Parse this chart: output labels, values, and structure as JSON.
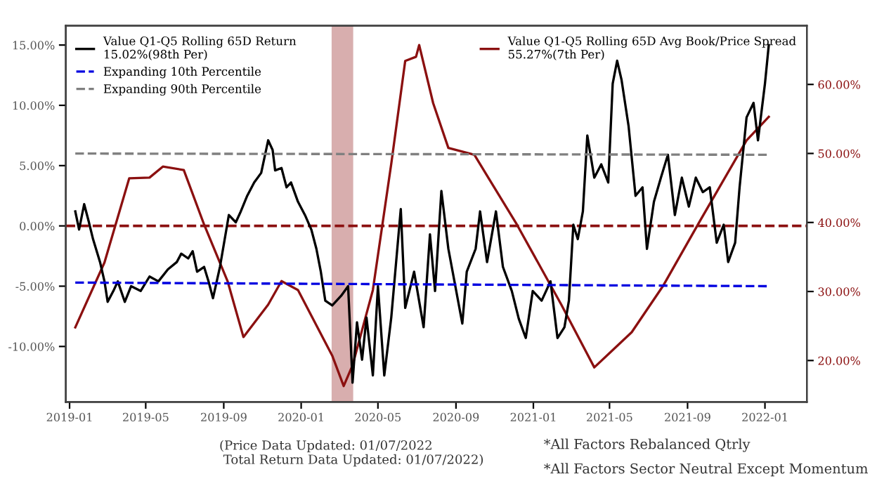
{
  "chart_data": {
    "type": "line",
    "xlim": [
      "2018-12-26",
      "2022-03-08"
    ],
    "xticks": [
      {
        "value": "2019-01-01",
        "label": "2019-01"
      },
      {
        "value": "2019-05-01",
        "label": "2019-05"
      },
      {
        "value": "2019-09-01",
        "label": "2019-09"
      },
      {
        "value": "2020-01-01",
        "label": "2020-01"
      },
      {
        "value": "2020-05-01",
        "label": "2020-05"
      },
      {
        "value": "2020-09-01",
        "label": "2020-09"
      },
      {
        "value": "2021-01-01",
        "label": "2021-01"
      },
      {
        "value": "2021-05-01",
        "label": "2021-05"
      },
      {
        "value": "2021-09-01",
        "label": "2021-09"
      },
      {
        "value": "2022-01-01",
        "label": "2022-01"
      }
    ],
    "ylim": [
      -14.6,
      16.6
    ],
    "yticks": [
      {
        "value": -10,
        "label": "-10.00%"
      },
      {
        "value": -5,
        "label": "-5.00%"
      },
      {
        "value": 0,
        "label": "0.00%"
      },
      {
        "value": 5,
        "label": "5.00%"
      },
      {
        "value": 10,
        "label": "10.00%"
      },
      {
        "value": 15,
        "label": "15.00%"
      }
    ],
    "y2lim": [
      14.0,
      68.5
    ],
    "y2ticks": [
      {
        "value": 20,
        "label": "20.00%"
      },
      {
        "value": 30,
        "label": "30.00%"
      },
      {
        "value": 40,
        "label": "40.00%"
      },
      {
        "value": 50,
        "label": "50.00%"
      },
      {
        "value": 60,
        "label": "60.00%"
      }
    ],
    "legend": "top",
    "grid": false,
    "series": [
      {
        "name": "Value Q1-Q5 Rolling 65D Return\n15.02%(98th Per)",
        "color": "#000000",
        "line_style": "solid",
        "x": [
          "2019-01-10",
          "2019-01-16",
          "2019-01-24",
          "2019-01-31",
          "2019-02-07",
          "2019-02-18",
          "2019-02-25",
          "2019-03-02",
          "2019-03-11",
          "2019-03-18",
          "2019-03-29",
          "2019-04-08",
          "2019-04-23",
          "2019-05-07",
          "2019-05-21",
          "2019-06-05",
          "2019-06-19",
          "2019-06-26",
          "2019-07-07",
          "2019-07-14",
          "2019-07-21",
          "2019-08-01",
          "2019-08-08",
          "2019-08-15",
          "2019-08-26",
          "2019-09-09",
          "2019-09-20",
          "2019-09-27",
          "2019-10-08",
          "2019-10-19",
          "2019-10-30",
          "2019-11-10",
          "2019-11-17",
          "2019-11-21",
          "2019-12-01",
          "2019-12-09",
          "2019-12-16",
          "2019-12-27",
          "2020-01-07",
          "2020-01-17",
          "2020-01-25",
          "2020-02-01",
          "2020-02-08",
          "2020-02-19",
          "2020-03-04",
          "2020-03-15",
          "2020-03-22",
          "2020-03-29",
          "2020-04-06",
          "2020-04-13",
          "2020-04-23",
          "2020-05-01",
          "2020-05-11",
          "2020-05-22",
          "2020-06-06",
          "2020-06-13",
          "2020-06-27",
          "2020-07-12",
          "2020-07-22",
          "2020-07-30",
          "2020-08-09",
          "2020-08-20",
          "2020-09-11",
          "2020-09-18",
          "2020-10-02",
          "2020-10-09",
          "2020-10-20",
          "2020-11-03",
          "2020-11-14",
          "2020-11-28",
          "2020-12-09",
          "2020-12-20",
          "2020-12-31",
          "2021-01-14",
          "2021-01-28",
          "2021-02-08",
          "2021-02-19",
          "2021-02-26",
          "2021-03-05",
          "2021-03-12",
          "2021-03-20",
          "2021-03-27",
          "2021-04-07",
          "2021-04-18",
          "2021-04-29",
          "2021-05-06",
          "2021-05-13",
          "2021-05-20",
          "2021-05-31",
          "2021-06-11",
          "2021-06-22",
          "2021-06-29",
          "2021-07-10",
          "2021-07-21",
          "2021-08-01",
          "2021-08-12",
          "2021-08-23",
          "2021-09-03",
          "2021-09-14",
          "2021-09-25",
          "2021-10-06",
          "2021-10-17",
          "2021-10-28",
          "2021-11-04",
          "2021-11-15",
          "2021-11-22",
          "2021-12-03",
          "2021-12-14",
          "2021-12-21",
          "2022-01-01",
          "2022-01-07"
        ],
        "values": [
          1.2,
          -0.3,
          1.8,
          0.4,
          -1.1,
          -3.0,
          -4.6,
          -6.3,
          -5.4,
          -4.6,
          -6.3,
          -5.0,
          -5.4,
          -4.2,
          -4.6,
          -3.6,
          -3.0,
          -2.3,
          -2.7,
          -2.1,
          -3.8,
          -3.4,
          -4.6,
          -6.0,
          -3.4,
          0.9,
          0.3,
          1.1,
          2.5,
          3.6,
          4.4,
          7.1,
          6.3,
          4.6,
          4.8,
          3.2,
          3.6,
          2.0,
          0.9,
          -0.3,
          -1.9,
          -3.8,
          -6.2,
          -6.6,
          -5.8,
          -5.0,
          -13.0,
          -8.0,
          -11.1,
          -7.6,
          -12.4,
          -5.0,
          -12.4,
          -7.6,
          1.4,
          -6.8,
          -3.8,
          -8.4,
          -0.7,
          -5.4,
          2.9,
          -1.9,
          -8.1,
          -3.8,
          -1.9,
          1.2,
          -3.0,
          1.2,
          -3.4,
          -5.4,
          -7.7,
          -9.3,
          -5.4,
          -6.2,
          -4.6,
          -9.3,
          -8.4,
          -6.2,
          0.1,
          -1.1,
          1.2,
          7.5,
          4.0,
          5.1,
          3.6,
          11.8,
          13.7,
          12.1,
          8.3,
          2.5,
          3.2,
          -1.9,
          2.0,
          4.0,
          5.9,
          0.9,
          4.0,
          1.6,
          4.0,
          2.8,
          3.2,
          -1.4,
          0.1,
          -3.0,
          -1.4,
          3.2,
          9.0,
          10.2,
          7.1,
          11.8,
          15.0
        ]
      },
      {
        "name": "Expanding 10th Percentile",
        "color": "#0000e0",
        "line_style": "dashed",
        "x": [
          "2019-01-10",
          "2022-01-07"
        ],
        "values": [
          -4.7,
          -5.0
        ]
      },
      {
        "name": "Expanding 90th Percentile",
        "color": "#808080",
        "line_style": "dashed",
        "x": [
          "2019-01-10",
          "2022-01-07"
        ],
        "values": [
          6.0,
          5.9
        ]
      },
      {
        "name": "Value Q1-Q5 Rolling 65D Avg Book/Price Spread\n55.27%(7th Per)",
        "color": "#8b1010",
        "axis": "y2",
        "line_style": "solid",
        "x": [
          "2019-01-10",
          "2019-02-25",
          "2019-04-05",
          "2019-05-07",
          "2019-05-28",
          "2019-06-30",
          "2019-08-01",
          "2019-09-07",
          "2019-10-02",
          "2019-11-10",
          "2019-12-01",
          "2019-12-27",
          "2020-02-19",
          "2020-03-08",
          "2020-03-22",
          "2020-04-23",
          "2020-05-22",
          "2020-06-13",
          "2020-06-30",
          "2020-07-05",
          "2020-07-27",
          "2020-08-20",
          "2020-09-30",
          "2020-12-06",
          "2021-02-14",
          "2021-04-07",
          "2021-06-05",
          "2021-07-25",
          "2021-09-21",
          "2021-12-03",
          "2022-01-07"
        ],
        "values": [
          24.8,
          34.2,
          46.4,
          46.5,
          48.1,
          47.6,
          39.7,
          31.5,
          23.4,
          28.1,
          31.5,
          30.2,
          20.7,
          16.3,
          19.3,
          30.2,
          48.5,
          63.4,
          64.0,
          65.7,
          57.3,
          50.8,
          49.8,
          39.7,
          28.1,
          19.0,
          24.1,
          30.9,
          40.3,
          51.9,
          55.3
        ]
      }
    ],
    "ref_lines": [
      {
        "axis": "y",
        "value": 0,
        "color": "#8b1010",
        "line_style": "dashed"
      }
    ],
    "bands": [
      {
        "axis": "x",
        "from": "2020-02-18",
        "to": "2020-03-23",
        "color": "#d4a5a5"
      }
    ],
    "annotations": [
      "(Price Data Updated: 01/07/2022\n Total Return Data Updated: 01/07/2022)",
      "*All Factors Rebalanced Qtrly",
      "*All Factors Sector Neutral Except Momentum"
    ]
  }
}
